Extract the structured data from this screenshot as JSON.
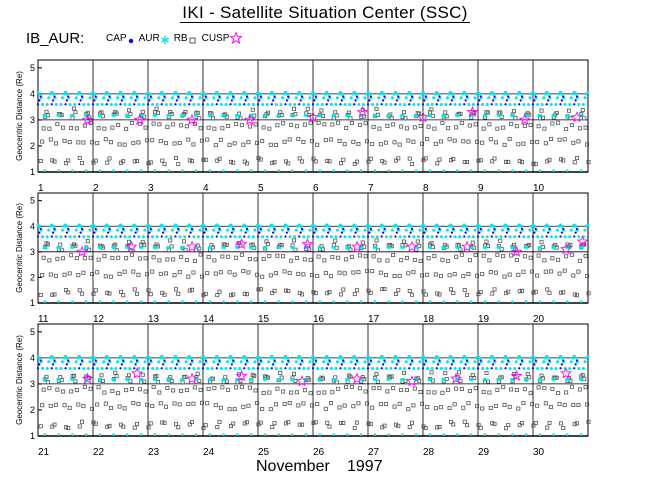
{
  "page": {
    "title": "IKI - Satellite Situation Center (SSC)",
    "series_id": "IB_AUR:",
    "month": "November",
    "year": "1997"
  },
  "legend": [
    {
      "label": "CAP",
      "symbol": "dot",
      "color": "#0000ff"
    },
    {
      "label": "AUR",
      "symbol": "asterisk",
      "color": "#00e5ee"
    },
    {
      "label": "RB",
      "symbol": "square",
      "color": "#555555"
    },
    {
      "label": "CUSP",
      "symbol": "star",
      "color": "#ff00ff"
    }
  ],
  "colors": {
    "cap": "#0000ff",
    "aur": "#00e5ee",
    "rb": "#555555",
    "cusp": "#ff00ff",
    "axis": "#000000"
  },
  "chart_data": [
    {
      "type": "scatter",
      "ylabel": "Geocentric Distance (Re)",
      "ylim": [
        1,
        5.3
      ],
      "yticks": [
        "1",
        "2",
        "3",
        "4",
        "5"
      ],
      "day_labels": [
        "1",
        "2",
        "3",
        "4",
        "5",
        "6",
        "7",
        "8",
        "9",
        "10"
      ],
      "x_range_days": [
        1,
        11
      ],
      "orbits_per_day": 4,
      "cusp_points": [
        [
          1.9,
          3.0
        ],
        [
          2.85,
          3.0
        ],
        [
          3.8,
          3.0
        ],
        [
          4.85,
          3.0
        ],
        [
          6.0,
          3.1
        ],
        [
          6.9,
          3.3
        ],
        [
          8.0,
          3.1
        ],
        [
          8.9,
          3.3
        ],
        [
          9.85,
          3.0
        ],
        [
          10.8,
          3.1
        ]
      ]
    },
    {
      "type": "scatter",
      "ylabel": "Geocentric Distance (Re)",
      "ylim": [
        1,
        5.3
      ],
      "yticks": [
        "1",
        "2",
        "3",
        "4",
        "5"
      ],
      "day_labels": [
        "11",
        "12",
        "13",
        "14",
        "15",
        "16",
        "17",
        "18",
        "19",
        "20"
      ],
      "x_range_days": [
        11,
        21
      ],
      "orbits_per_day": 4,
      "cusp_points": [
        [
          11.8,
          3.0
        ],
        [
          12.7,
          3.2
        ],
        [
          13.8,
          3.2
        ],
        [
          14.7,
          3.3
        ],
        [
          15.9,
          3.3
        ],
        [
          16.8,
          3.2
        ],
        [
          17.8,
          3.2
        ],
        [
          18.8,
          3.2
        ],
        [
          19.7,
          3.0
        ],
        [
          20.6,
          3.1
        ],
        [
          20.9,
          3.4
        ]
      ]
    },
    {
      "type": "scatter",
      "ylabel": "Geocentric Distance (Re)",
      "ylim": [
        1,
        5.3
      ],
      "yticks": [
        "1",
        "2",
        "3",
        "4",
        "5"
      ],
      "day_labels": [
        "21",
        "22",
        "23",
        "24",
        "25",
        "26",
        "27",
        "28",
        "29",
        "30"
      ],
      "x_range_days": [
        21,
        31
      ],
      "orbits_per_day": 4,
      "cusp_points": [
        [
          21.9,
          3.2
        ],
        [
          22.8,
          3.4
        ],
        [
          23.8,
          3.2
        ],
        [
          24.7,
          3.3
        ],
        [
          25.8,
          3.1
        ],
        [
          26.8,
          3.2
        ],
        [
          27.8,
          3.1
        ],
        [
          28.6,
          3.2
        ],
        [
          29.7,
          3.3
        ],
        [
          30.6,
          3.4
        ]
      ]
    }
  ]
}
